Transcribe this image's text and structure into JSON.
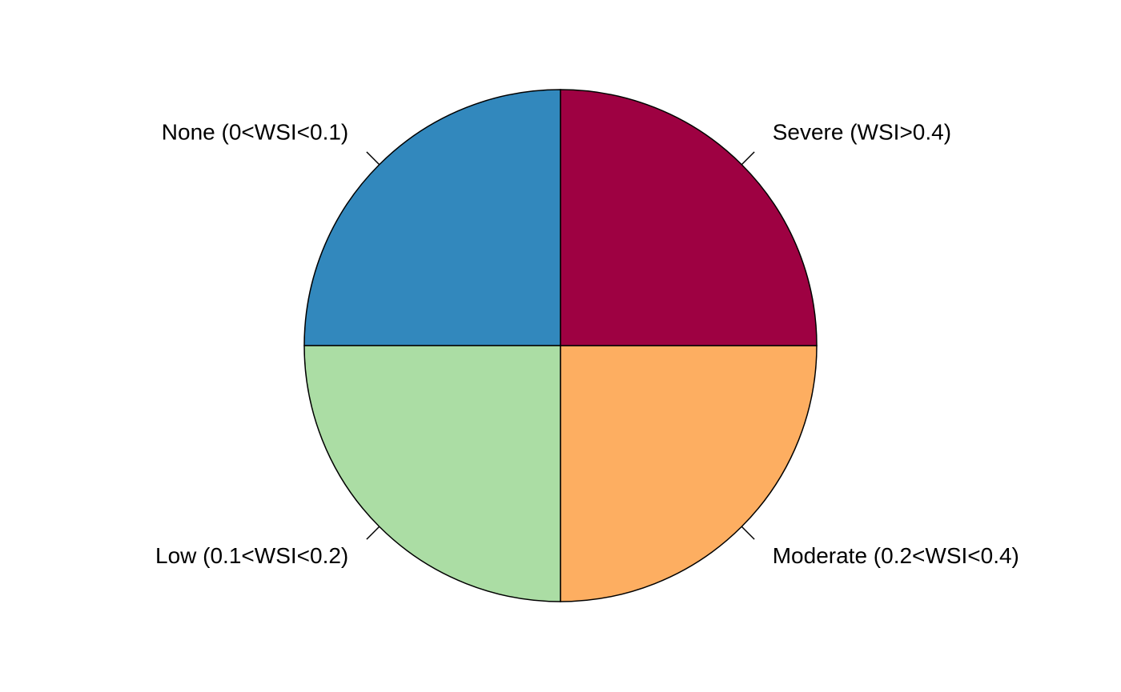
{
  "chart_data": {
    "type": "pie",
    "title": "",
    "start_angle_deg": 90,
    "direction": "counterclockwise",
    "labels": [
      "None (0<WSI<0.1)",
      "Low (0.1<WSI<0.2)",
      "Moderate (0.2<WSI<0.4)",
      "Severe (WSI>0.4)"
    ],
    "values": [
      25,
      25,
      25,
      25
    ],
    "colors": [
      "#3288bd",
      "#abdda4",
      "#fdae61",
      "#9e0142"
    ],
    "legend": "none",
    "border_color": "#000000"
  }
}
